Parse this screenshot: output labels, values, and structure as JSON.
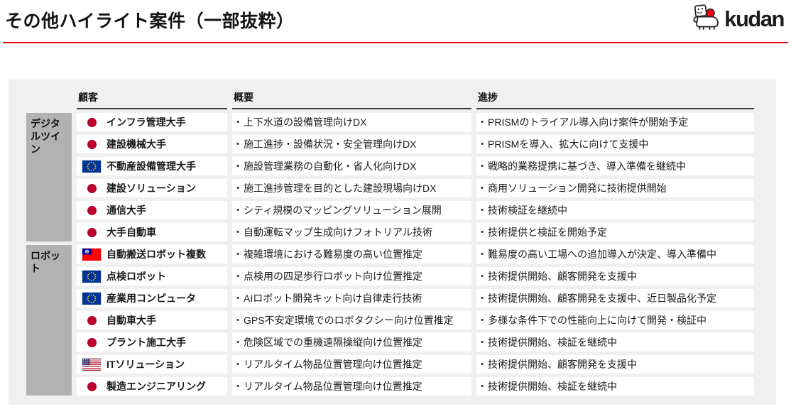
{
  "page": {
    "title": "その他ハイライト案件（一部抜粋）"
  },
  "logo": {
    "brand": "kudan"
  },
  "colors": {
    "accent_red": "#e60012",
    "panel_bg": "#f0f0f0",
    "category_bg": "#b2b2b2",
    "japan_red": "#bc002d",
    "eu_blue": "#003399",
    "eu_star": "#ffcc00",
    "taiwan_red": "#fe0000",
    "taiwan_blue": "#000095",
    "us_red": "#b22234",
    "us_blue": "#3c3b6e"
  },
  "table": {
    "bullet": "•",
    "headers": {
      "customer": "顧客",
      "overview": "概要",
      "progress": "進捗"
    },
    "categories": [
      {
        "label": "デジタルツイン",
        "row_start": 1,
        "row_span": 6
      },
      {
        "label": "ロボット",
        "row_start": 7,
        "row_span": 7
      }
    ],
    "rows": [
      {
        "flag": "japan",
        "customer": "インフラ管理大手",
        "overview": "上下水道の設備管理向けDX",
        "progress": "PRISMのトライアル導入向け案件が開始予定"
      },
      {
        "flag": "japan",
        "customer": "建設機械大手",
        "overview": "施工進捗・設備状況・安全管理向けDX",
        "progress": "PRISMを導入、拡大に向けて支援中"
      },
      {
        "flag": "eu",
        "customer": "不動産設備管理大手",
        "overview": "施設管理業務の自動化・省人化向けDX",
        "progress": "戦略的業務提携に基づき、導入準備を継続中"
      },
      {
        "flag": "japan",
        "customer": "建設ソリューション",
        "overview": "施工進捗管理を目的とした建設現場向けDX",
        "progress": "商用ソリューション開発に技術提供開始"
      },
      {
        "flag": "japan",
        "customer": "通信大手",
        "overview": "シティ規模のマッピングソリューション展開",
        "progress": "技術検証を継続中"
      },
      {
        "flag": "japan",
        "customer": "大手自動車",
        "overview": "自動運転マップ生成向けフォトリアル技術",
        "progress": "技術提供と検証を開始予定"
      },
      {
        "flag": "taiwan",
        "customer": "自動搬送ロボット複数",
        "overview": "複雑環境における難易度の高い位置推定",
        "progress": "難易度の高い工場への追加導入が決定、導入準備中"
      },
      {
        "flag": "eu",
        "customer": "点検ロボット",
        "overview": "点検用の四足歩行ロボット向け位置推定",
        "progress": "技術提供開始、顧客開発を支援中"
      },
      {
        "flag": "eu",
        "customer": "産業用コンピュータ",
        "overview": "AIロボット開発キット向け自律走行技術",
        "progress": "技術提供開始、顧客開発を支援中、近日製品化予定"
      },
      {
        "flag": "japan",
        "customer": "自動車大手",
        "overview": "GPS不安定環境でのロボタクシー向け位置推定",
        "progress": "多様な条件下での性能向上に向けて開発・検証中"
      },
      {
        "flag": "japan",
        "customer": "プラント施工大手",
        "overview": "危険区域での重機遠隔操縦向け位置推定",
        "progress": "技術提供開始、検証を継続中"
      },
      {
        "flag": "usa",
        "customer": "ITソリューション",
        "overview": "リアルタイム物品位置管理向け位置推定",
        "progress": "技術提供開始、顧客開発を支援中"
      },
      {
        "flag": "japan",
        "customer": "製造エンジニアリング",
        "overview": "リアルタイム物品位置管理向け位置推定",
        "progress": "技術提供開始、検証を継続中"
      }
    ]
  }
}
